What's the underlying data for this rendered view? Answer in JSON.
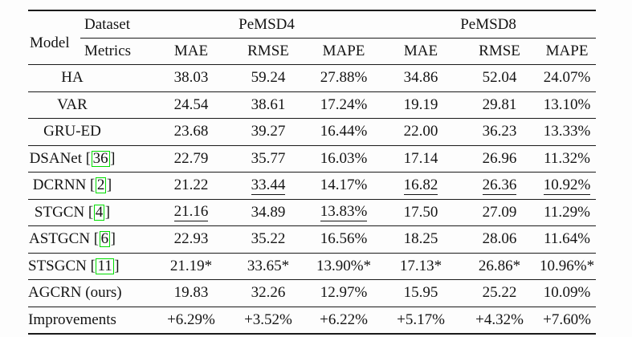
{
  "table": {
    "header": {
      "model_label": "Model",
      "dataset_label": "Dataset",
      "metrics_label": "Metrics",
      "groups": [
        {
          "label": "PeMSD4"
        },
        {
          "label": "PeMSD8"
        }
      ],
      "metric_columns": [
        "MAE",
        "RMSE",
        "MAPE",
        "MAE",
        "RMSE",
        "MAPE"
      ]
    },
    "colors": {
      "citation_box": "#00dd00",
      "rule": "#1a1a1a"
    },
    "rows": [
      {
        "model": "HA",
        "citation": null,
        "values": [
          {
            "text": "38.03"
          },
          {
            "text": "59.24"
          },
          {
            "text": "27.88%"
          },
          {
            "text": "34.86"
          },
          {
            "text": "52.04"
          },
          {
            "text": "24.07%"
          }
        ]
      },
      {
        "model": "VAR",
        "citation": null,
        "values": [
          {
            "text": "24.54"
          },
          {
            "text": "38.61"
          },
          {
            "text": "17.24%"
          },
          {
            "text": "19.19"
          },
          {
            "text": "29.81"
          },
          {
            "text": "13.10%"
          }
        ]
      },
      {
        "model": "GRU-ED",
        "citation": null,
        "values": [
          {
            "text": "23.68"
          },
          {
            "text": "39.27"
          },
          {
            "text": "16.44%"
          },
          {
            "text": "22.00"
          },
          {
            "text": "36.23"
          },
          {
            "text": "13.33%"
          }
        ]
      },
      {
        "model": "DSANet",
        "citation": "36",
        "values": [
          {
            "text": "22.79"
          },
          {
            "text": "35.77"
          },
          {
            "text": "16.03%"
          },
          {
            "text": "17.14"
          },
          {
            "text": "26.96"
          },
          {
            "text": "11.32%"
          }
        ]
      },
      {
        "model": "DCRNN",
        "citation": "2",
        "values": [
          {
            "text": "21.22"
          },
          {
            "text": "33.44",
            "underline": true
          },
          {
            "text": "14.17%"
          },
          {
            "text": "16.82",
            "underline": true
          },
          {
            "text": "26.36",
            "underline": true
          },
          {
            "text": "10.92%",
            "underline": true
          }
        ]
      },
      {
        "model": "STGCN",
        "citation": "4",
        "values": [
          {
            "text": "21.16",
            "underline": true
          },
          {
            "text": "34.89"
          },
          {
            "text": "13.83%",
            "underline": true
          },
          {
            "text": "17.50"
          },
          {
            "text": "27.09"
          },
          {
            "text": "11.29%"
          }
        ]
      },
      {
        "model": "ASTGCN",
        "citation": "6",
        "values": [
          {
            "text": "22.93"
          },
          {
            "text": "35.22"
          },
          {
            "text": "16.56%"
          },
          {
            "text": "18.25"
          },
          {
            "text": "28.06"
          },
          {
            "text": "11.64%"
          }
        ]
      },
      {
        "model": "STSGCN",
        "citation": "11",
        "values": [
          {
            "text": "21.19*"
          },
          {
            "text": "33.65*"
          },
          {
            "text": "13.90%*"
          },
          {
            "text": "17.13*"
          },
          {
            "text": "26.86*"
          },
          {
            "text": "10.96%*"
          }
        ]
      },
      {
        "model": "AGCRN (ours)",
        "citation": null,
        "values": [
          {
            "text": "19.83"
          },
          {
            "text": "32.26"
          },
          {
            "text": "12.97%"
          },
          {
            "text": "15.95"
          },
          {
            "text": "25.22"
          },
          {
            "text": "10.09%"
          }
        ]
      },
      {
        "model": "Improvements",
        "citation": null,
        "values": [
          {
            "text": "+6.29%"
          },
          {
            "text": "+3.52%"
          },
          {
            "text": "+6.22%"
          },
          {
            "text": "+5.17%"
          },
          {
            "text": "+4.32%"
          },
          {
            "text": "+7.60%"
          }
        ]
      }
    ]
  }
}
